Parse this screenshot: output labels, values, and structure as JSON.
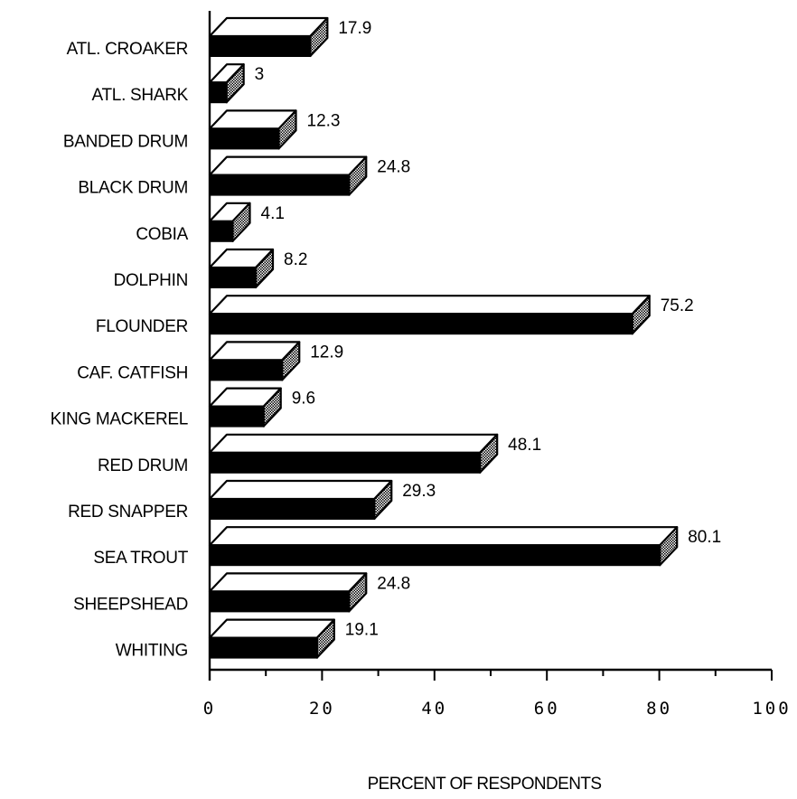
{
  "chart_data": {
    "type": "bar",
    "orientation": "horizontal",
    "style": "3d",
    "categories": [
      "ATL. CROAKER",
      "ATL. SHARK",
      "BANDED DRUM",
      "BLACK DRUM",
      "COBIA",
      "DOLPHIN",
      "FLOUNDER",
      "CAF. CATFISH",
      "KING MACKEREL",
      "RED DRUM",
      "RED SNAPPER",
      "SEA TROUT",
      "SHEEPSHEAD",
      "WHITING"
    ],
    "values": [
      17.9,
      3,
      12.3,
      24.8,
      4.1,
      8.2,
      75.2,
      12.9,
      9.6,
      48.1,
      29.3,
      80.1,
      24.8,
      19.1
    ],
    "value_labels": [
      "17.9",
      "3",
      "12.3",
      "24.8",
      "4.1",
      "8.2",
      "75.2",
      "12.9",
      "9.6",
      "48.1",
      "29.3",
      "80.1",
      "24.8",
      "19.1"
    ],
    "xlabel": "PERCENT OF RESPONDENTS",
    "ylabel": "",
    "xlim": [
      0,
      100
    ],
    "xticks": [
      0,
      20,
      40,
      60,
      80,
      100
    ],
    "xtick_labels": [
      "0",
      "20",
      "40",
      "60",
      "80",
      "100"
    ],
    "grid": false,
    "colors": {
      "bar_front": "#000000",
      "bar_top": "#ffffff",
      "bar_side": "#9a9a9a",
      "axis": "#000000"
    }
  }
}
